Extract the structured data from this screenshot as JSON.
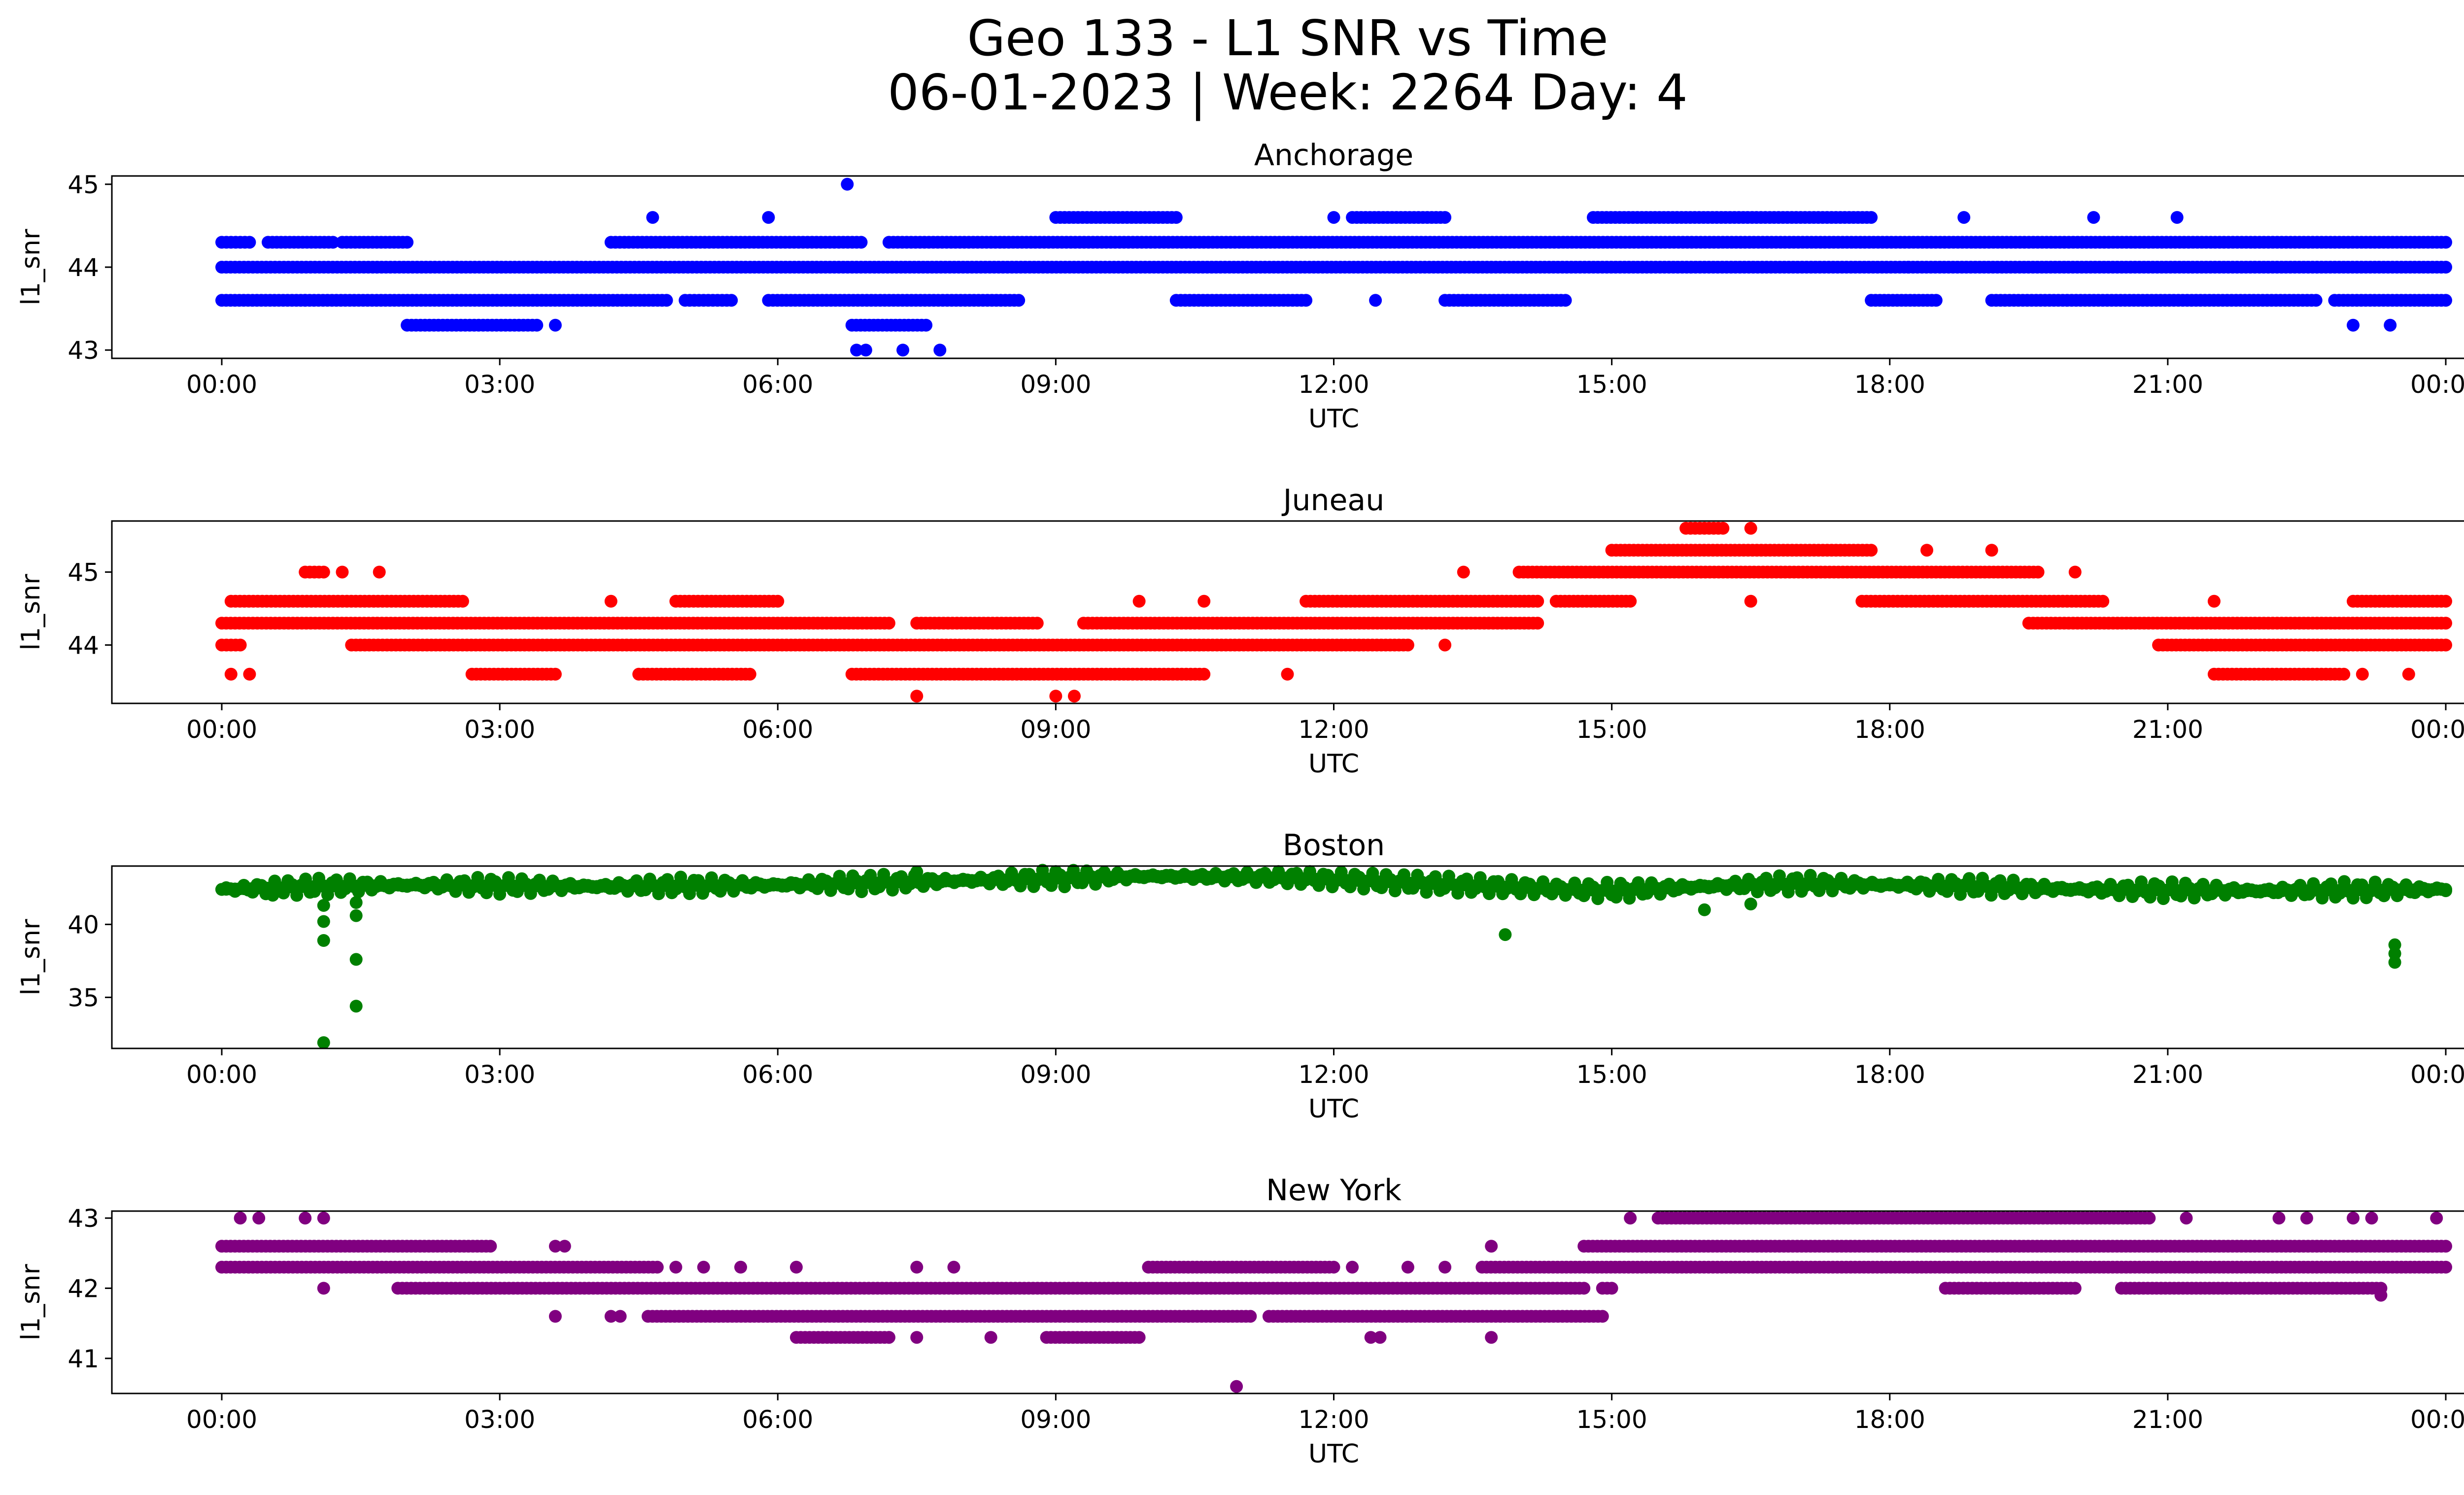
{
  "figure": {
    "title_line1": "Geo 133 - L1 SNR vs Time",
    "title_line2": "06-01-2023 | Week: 2264 Day: 4"
  },
  "chart_data": [
    {
      "type": "scatter",
      "title": "Anchorage",
      "xlabel": "UTC",
      "ylabel": "l1_snr",
      "color": "#0000ff",
      "x_ticks": [
        "00:00",
        "03:00",
        "06:00",
        "09:00",
        "12:00",
        "15:00",
        "18:00",
        "21:00",
        "00:00"
      ],
      "y_ticks": [
        43,
        44,
        45
      ],
      "ylim": [
        42.9,
        45.1
      ],
      "series": [
        {
          "levels": [
            {
              "y": 44.0,
              "ranges": [
                [
                  0.0,
                  24.0
                ]
              ]
            },
            {
              "y": 44.3,
              "ranges": [
                [
                  0.0,
                  0.3
                ],
                [
                  0.5,
                  1.2
                ],
                [
                  1.3,
                  2.0
                ],
                [
                  4.2,
                  6.9
                ],
                [
                  7.2,
                  24.0
                ]
              ]
            },
            {
              "y": 43.6,
              "ranges": [
                [
                  0.0,
                  0.9
                ],
                [
                  0.9,
                  4.8
                ],
                [
                  5.0,
                  5.5
                ],
                [
                  5.9,
                  8.6
                ],
                [
                  10.3,
                  11.7
                ],
                [
                  13.2,
                  14.5
                ],
                [
                  17.8,
                  18.5
                ],
                [
                  19.1,
                  22.6
                ],
                [
                  22.8,
                  24.0
                ]
              ]
            },
            {
              "y": 44.6,
              "ranges": [
                [
                  9.0,
                  10.3
                ],
                [
                  12.2,
                  13.2
                ],
                [
                  14.8,
                  17.8
                ]
              ]
            },
            {
              "y": 43.3,
              "ranges": [
                [
                  2.0,
                  3.4
                ],
                [
                  6.8,
                  7.6
                ]
              ]
            }
          ],
          "points": [
            [
              6.75,
              45.0
            ],
            [
              6.85,
              43.0
            ],
            [
              6.95,
              43.0
            ],
            [
              7.35,
              43.0
            ],
            [
              7.75,
              43.0
            ],
            [
              3.6,
              43.3
            ],
            [
              23.0,
              43.3
            ],
            [
              23.4,
              43.3
            ],
            [
              4.65,
              44.6
            ],
            [
              5.9,
              44.6
            ],
            [
              12.0,
              44.6
            ],
            [
              20.2,
              44.6
            ],
            [
              21.1,
              44.6
            ],
            [
              12.45,
              43.6
            ],
            [
              18.8,
              44.6
            ],
            [
              18.2,
              44.0
            ]
          ]
        }
      ]
    },
    {
      "type": "scatter",
      "title": "Juneau",
      "xlabel": "UTC",
      "ylabel": "l1_snr",
      "color": "#ff0000",
      "x_ticks": [
        "00:00",
        "03:00",
        "06:00",
        "09:00",
        "12:00",
        "15:00",
        "18:00",
        "21:00",
        "00:00"
      ],
      "y_ticks": [
        44,
        45
      ],
      "ylim": [
        43.2,
        45.7
      ],
      "series": [
        {
          "levels": [
            {
              "y": 44.3,
              "ranges": [
                [
                  0.0,
                  7.2
                ],
                [
                  7.5,
                  8.8
                ],
                [
                  9.3,
                  14.2
                ],
                [
                  19.5,
                  24.0
                ]
              ]
            },
            {
              "y": 44.0,
              "ranges": [
                [
                  0.0,
                  0.2
                ],
                [
                  1.4,
                  12.8
                ],
                [
                  20.9,
                  24.0
                ]
              ]
            },
            {
              "y": 44.6,
              "ranges": [
                [
                  0.1,
                  2.6
                ],
                [
                  4.9,
                  6.0
                ],
                [
                  11.7,
                  14.2
                ],
                [
                  14.4,
                  15.2
                ],
                [
                  17.7,
                  20.3
                ],
                [
                  23.0,
                  24.0
                ]
              ]
            },
            {
              "y": 45.0,
              "ranges": [
                [
                  0.9,
                  1.1
                ],
                [
                  14.0,
                  19.6
                ]
              ]
            },
            {
              "y": 45.3,
              "ranges": [
                [
                  15.0,
                  17.8
                ]
              ]
            },
            {
              "y": 43.6,
              "ranges": [
                [
                  2.7,
                  3.6
                ],
                [
                  4.5,
                  5.7
                ],
                [
                  6.8,
                  10.6
                ],
                [
                  21.5,
                  22.9
                ]
              ]
            },
            {
              "y": 45.6,
              "ranges": [
                [
                  15.8,
                  16.2
                ]
              ]
            }
          ],
          "points": [
            [
              0.1,
              43.6
            ],
            [
              0.3,
              43.6
            ],
            [
              7.5,
              43.3
            ],
            [
              9.0,
              43.3
            ],
            [
              9.2,
              43.3
            ],
            [
              11.5,
              43.6
            ],
            [
              13.2,
              44.0
            ],
            [
              13.4,
              45.0
            ],
            [
              16.5,
              45.6
            ],
            [
              16.5,
              44.6
            ],
            [
              18.4,
              45.3
            ],
            [
              19.1,
              45.3
            ],
            [
              20.0,
              45.0
            ],
            [
              21.5,
              44.6
            ],
            [
              23.1,
              43.6
            ],
            [
              23.6,
              43.6
            ],
            [
              1.3,
              45.0
            ],
            [
              1.7,
              45.0
            ],
            [
              4.2,
              44.6
            ],
            [
              9.9,
              44.6
            ],
            [
              10.6,
              44.6
            ]
          ]
        }
      ]
    },
    {
      "type": "scatter",
      "title": "Boston",
      "xlabel": "UTC",
      "ylabel": "l1_snr",
      "color": "#008000",
      "x_ticks": [
        "00:00",
        "03:00",
        "06:00",
        "09:00",
        "12:00",
        "15:00",
        "18:00",
        "21:00",
        "00:00"
      ],
      "y_ticks": [
        35,
        40
      ],
      "ylim": [
        31.5,
        44.0
      ],
      "series": [
        {
          "curve": [
            [
              0.0,
              42.4
            ],
            [
              1.0,
              42.6
            ],
            [
              2.0,
              42.7
            ],
            [
              4.0,
              42.6
            ],
            [
              6.0,
              42.7
            ],
            [
              8.0,
              43.0
            ],
            [
              10.0,
              43.3
            ],
            [
              11.5,
              43.2
            ],
            [
              13.0,
              42.8
            ],
            [
              14.5,
              42.4
            ],
            [
              15.0,
              42.3
            ],
            [
              16.0,
              42.6
            ],
            [
              17.0,
              42.8
            ],
            [
              18.0,
              42.7
            ],
            [
              19.0,
              42.6
            ],
            [
              20.0,
              42.4
            ],
            [
              22.0,
              42.3
            ],
            [
              24.0,
              42.4
            ]
          ],
          "points": [
            [
              1.1,
              31.9
            ],
            [
              1.1,
              38.9
            ],
            [
              1.1,
              40.2
            ],
            [
              1.1,
              41.3
            ],
            [
              1.45,
              34.4
            ],
            [
              1.45,
              37.6
            ],
            [
              1.45,
              40.6
            ],
            [
              1.45,
              41.5
            ],
            [
              13.85,
              39.3
            ],
            [
              16.0,
              41.0
            ],
            [
              16.5,
              41.4
            ],
            [
              23.45,
              37.4
            ],
            [
              23.45,
              38.0
            ],
            [
              23.45,
              38.6
            ],
            [
              0.55,
              42.0
            ],
            [
              7.5,
              43.6
            ],
            [
              11.6,
              43.5
            ]
          ]
        }
      ]
    },
    {
      "type": "scatter",
      "title": "New York",
      "xlabel": "UTC",
      "ylabel": "l1_snr",
      "color": "#800080",
      "x_ticks": [
        "00:00",
        "03:00",
        "06:00",
        "09:00",
        "12:00",
        "15:00",
        "18:00",
        "21:00",
        "00:00"
      ],
      "y_ticks": [
        41,
        42,
        43
      ],
      "ylim": [
        40.5,
        43.1
      ],
      "series": [
        {
          "levels": [
            {
              "y": 42.3,
              "ranges": [
                [
                  0.0,
                  4.7
                ],
                [
                  10.0,
                  12.0
                ],
                [
                  13.6,
                  24.0
                ]
              ]
            },
            {
              "y": 42.6,
              "ranges": [
                [
                  0.0,
                  2.9
                ],
                [
                  14.7,
                  24.0
                ]
              ]
            },
            {
              "y": 42.0,
              "ranges": [
                [
                  1.9,
                  14.7
                ],
                [
                  14.9,
                  15.0
                ],
                [
                  18.6,
                  20.0
                ],
                [
                  20.5,
                  23.3
                ]
              ]
            },
            {
              "y": 41.6,
              "ranges": [
                [
                  4.6,
                  11.1
                ],
                [
                  11.3,
                  14.9
                ]
              ]
            },
            {
              "y": 43.0,
              "ranges": [
                [
                  15.5,
                  20.8
                ]
              ]
            },
            {
              "y": 41.3,
              "ranges": [
                [
                  6.2,
                  7.2
                ],
                [
                  8.9,
                  9.9
                ]
              ]
            }
          ],
          "points": [
            [
              0.2,
              43.0
            ],
            [
              0.4,
              43.0
            ],
            [
              0.9,
              43.0
            ],
            [
              1.1,
              43.0
            ],
            [
              1.1,
              42.0
            ],
            [
              3.6,
              41.6
            ],
            [
              4.2,
              41.6
            ],
            [
              4.3,
              41.6
            ],
            [
              3.6,
              42.6
            ],
            [
              3.7,
              42.6
            ],
            [
              7.2,
              41.3
            ],
            [
              7.5,
              41.3
            ],
            [
              8.3,
              41.3
            ],
            [
              10.95,
              40.6
            ],
            [
              12.4,
              41.3
            ],
            [
              12.5,
              41.3
            ],
            [
              13.7,
              41.3
            ],
            [
              13.7,
              42.6
            ],
            [
              15.2,
              43.0
            ],
            [
              21.2,
              43.0
            ],
            [
              22.2,
              43.0
            ],
            [
              22.5,
              43.0
            ],
            [
              23.0,
              43.0
            ],
            [
              23.2,
              43.0
            ],
            [
              23.9,
              43.0
            ],
            [
              23.3,
              41.9
            ],
            [
              4.9,
              42.3
            ],
            [
              5.2,
              42.3
            ],
            [
              5.6,
              42.3
            ],
            [
              6.2,
              42.3
            ],
            [
              7.5,
              42.3
            ],
            [
              7.9,
              42.3
            ],
            [
              12.2,
              42.3
            ],
            [
              12.8,
              42.3
            ],
            [
              13.2,
              42.3
            ]
          ]
        }
      ]
    }
  ]
}
